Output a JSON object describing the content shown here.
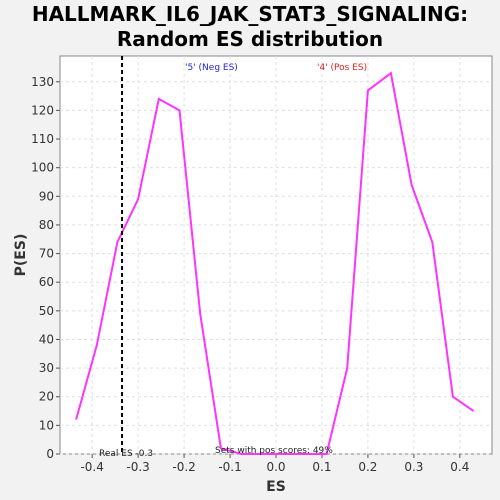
{
  "title_line1": "HALLMARK_IL6_JAK_STAT3_SIGNALING:",
  "title_line2": "Random ES distribution",
  "chart_data": {
    "type": "line",
    "xlabel": "ES",
    "ylabel": "P(ES)",
    "xlim": [
      -0.47,
      0.47
    ],
    "ylim": [
      0,
      139
    ],
    "xticks": [
      -0.4,
      -0.3,
      -0.2,
      -0.1,
      0.0,
      0.1,
      0.2,
      0.3,
      0.4
    ],
    "xtick_labels": [
      "-0.4",
      "-0.3",
      "-0.2",
      "-0.1",
      "0.0",
      "0.1",
      "0.2",
      "0.3",
      "0.4"
    ],
    "yticks": [
      0,
      10,
      20,
      30,
      40,
      50,
      60,
      70,
      80,
      90,
      100,
      110,
      120,
      130
    ],
    "grid": true,
    "series": [
      {
        "color": "#ff33ff",
        "x": [
          -0.435,
          -0.39,
          -0.345,
          -0.3,
          -0.255,
          -0.21,
          -0.165,
          -0.12,
          -0.075,
          -0.03,
          0.015,
          0.06,
          0.11,
          0.155,
          0.2,
          0.25,
          0.295,
          0.34,
          0.385,
          0.43
        ],
        "y": [
          12,
          38,
          74,
          89,
          124,
          120,
          49,
          2,
          0,
          0,
          0,
          0,
          0,
          30,
          127,
          133,
          94,
          74,
          20,
          15
        ]
      }
    ],
    "vline": {
      "x": -0.335,
      "label": "Real ES -0.3"
    },
    "annotations": {
      "neg_label": "'5' (Neg ES)",
      "pos_label": "'4' (Pos ES)",
      "pos_scores": "Sets with pos scores: 49%"
    }
  }
}
